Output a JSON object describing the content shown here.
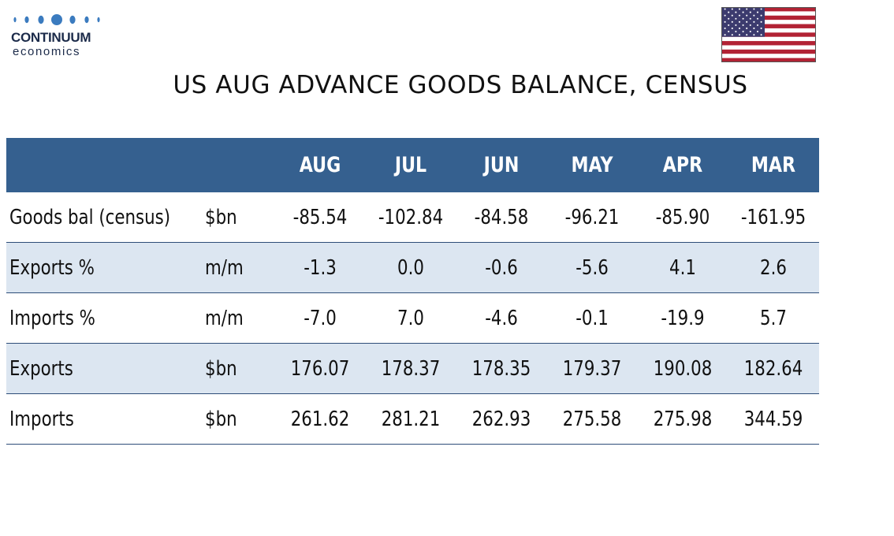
{
  "logo": {
    "name": "CONTINUUM",
    "sub": "economics"
  },
  "flag": {
    "icon": "us-flag-icon",
    "colors": {
      "red": "#b22234",
      "white": "#ffffff",
      "blue": "#3c3b6e"
    }
  },
  "title": "US AUG ADVANCE GOODS BALANCE, CENSUS",
  "colors": {
    "header_bg": "#35608f",
    "header_text": "#ffffff",
    "shaded_row": "#dce6f1",
    "row_rule": "#2e4d78"
  },
  "table": {
    "columns": [
      "AUG",
      "JUL",
      "JUN",
      "MAY",
      "APR",
      "MAR"
    ],
    "rows": [
      {
        "label": "Goods bal (census)",
        "unit": "$bn",
        "values": [
          "-85.54",
          "-102.84",
          "-84.58",
          "-96.21",
          "-85.90",
          "-161.95"
        ]
      },
      {
        "label": "Exports %",
        "unit": "m/m",
        "values": [
          "-1.3",
          "0.0",
          "-0.6",
          "-5.6",
          "4.1",
          "2.6"
        ]
      },
      {
        "label": "Imports %",
        "unit": "m/m",
        "values": [
          "-7.0",
          "7.0",
          "-4.6",
          "-0.1",
          "-19.9",
          "5.7"
        ]
      },
      {
        "label": "Exports",
        "unit": "$bn",
        "values": [
          "176.07",
          "178.37",
          "178.35",
          "179.37",
          "190.08",
          "182.64"
        ]
      },
      {
        "label": "Imports",
        "unit": "$bn",
        "values": [
          "261.62",
          "281.21",
          "262.93",
          "275.58",
          "275.98",
          "344.59"
        ]
      }
    ]
  }
}
